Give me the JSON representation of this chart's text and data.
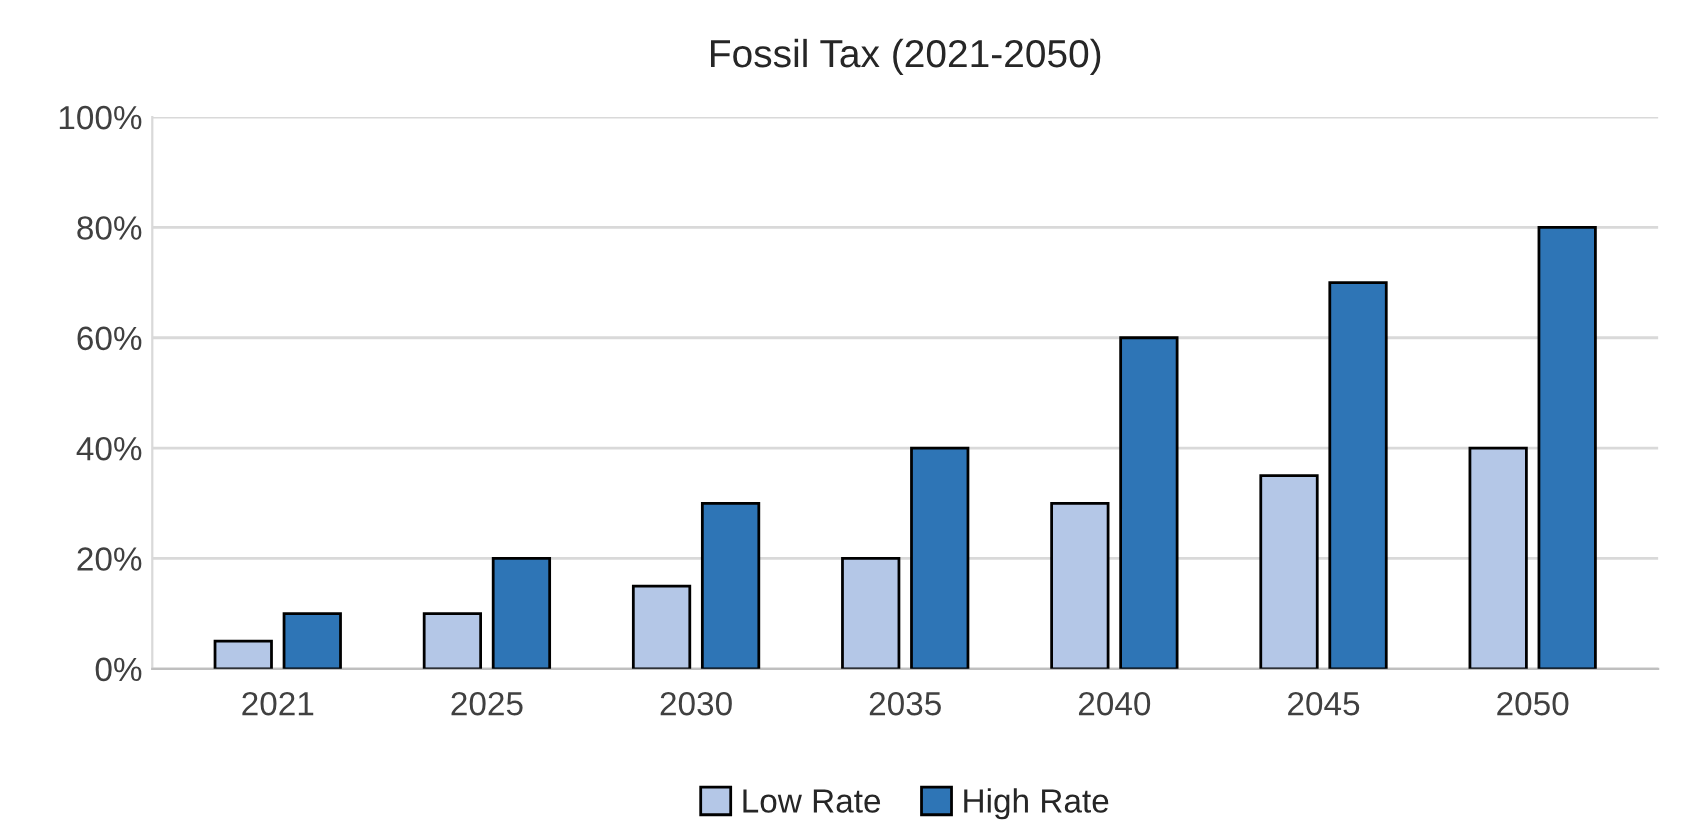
{
  "chart_data": {
    "type": "bar",
    "title": "Fossil Tax (2021-2050)",
    "categories": [
      "2021",
      "2025",
      "2030",
      "2035",
      "2040",
      "2045",
      "2050"
    ],
    "series": [
      {
        "name": "Low Rate",
        "color": "#b4c7e7",
        "values": [
          5,
          10,
          15,
          20,
          30,
          35,
          40
        ]
      },
      {
        "name": "High Rate",
        "color": "#2e75b6",
        "values": [
          10,
          20,
          30,
          40,
          60,
          70,
          80
        ]
      }
    ],
    "ylim": [
      0,
      100
    ],
    "yticks": [
      {
        "value": 0,
        "label": "0%"
      },
      {
        "value": 20,
        "label": "20%"
      },
      {
        "value": 40,
        "label": "40%"
      },
      {
        "value": 60,
        "label": "60%"
      },
      {
        "value": 80,
        "label": "80%"
      },
      {
        "value": 100,
        "label": "100%"
      }
    ],
    "grid": "y",
    "legend": "bottom"
  }
}
